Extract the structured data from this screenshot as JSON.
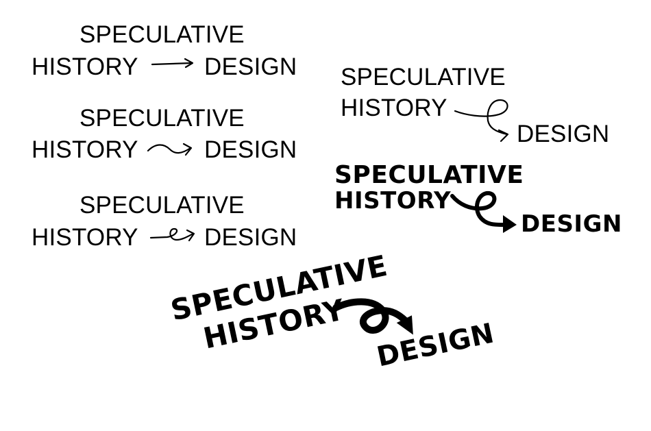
{
  "variants": [
    {
      "line1": "SPECULATIVE",
      "line2": "HISTORY",
      "target": "DESIGN",
      "arrow_icon": "straight-arrow-icon"
    },
    {
      "line1": "SPECULATIVE",
      "line2": "HISTORY",
      "target": "DESIGN",
      "arrow_icon": "wavy-arrow-icon"
    },
    {
      "line1": "SPECULATIVE",
      "line2": "HISTORY",
      "target": "DESIGN",
      "arrow_icon": "loop-arrow-icon"
    },
    {
      "line1": "SPECULATIVE",
      "line2": "HISTORY",
      "target": "DESIGN",
      "arrow_icon": "loop-arrow-icon"
    },
    {
      "line1": "SPECULATIVE",
      "line2": "HISTORY",
      "target": "DESIGN",
      "arrow_icon": "bold-loop-arrow-icon"
    },
    {
      "line1": "SPECULATIVE",
      "line2": "HISTORY",
      "target": "DESIGN",
      "arrow_icon": "bold-loop-arrow-icon"
    }
  ],
  "colors": {
    "ink": "#000000",
    "background": "#ffffff"
  }
}
